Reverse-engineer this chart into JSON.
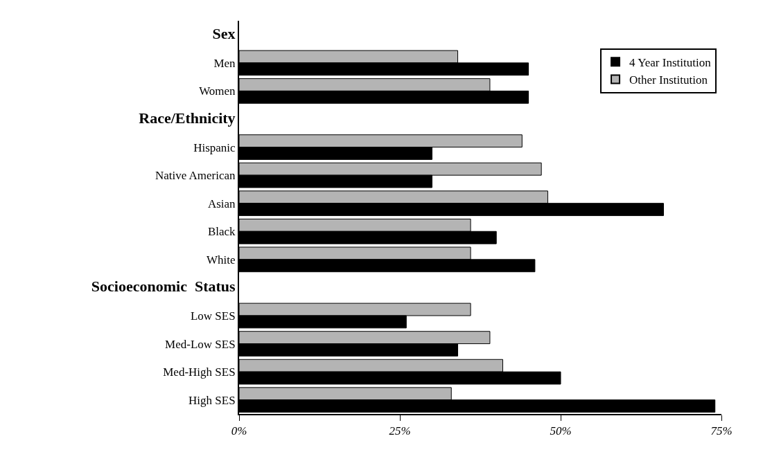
{
  "chart_data": {
    "type": "bar",
    "orientation": "horizontal",
    "categories": [
      "Sex",
      "Men",
      "Women",
      "Race/Ethnicity",
      "Hispanic",
      "Native American",
      "Asian",
      "Black",
      "White",
      "Socioeconomic  Status",
      "Low SES",
      "Med-Low SES",
      "Med-High SES",
      "High SES"
    ],
    "series": [
      {
        "name": "4 Year Institution",
        "color": "#000000",
        "values": [
          null,
          45,
          45,
          null,
          30,
          30,
          66,
          40,
          46,
          null,
          26,
          34,
          50,
          74
        ]
      },
      {
        "name": "Other Institution",
        "color": "#b4b4b4",
        "values": [
          null,
          34,
          39,
          null,
          44,
          47,
          48,
          36,
          36,
          null,
          36,
          39,
          41,
          33
        ]
      }
    ],
    "xlim": [
      0,
      75
    ],
    "xticks": [
      {
        "value": 0,
        "label": "0%"
      },
      {
        "value": 25,
        "label": "25%"
      },
      {
        "value": 50,
        "label": "50%"
      },
      {
        "value": 75,
        "label": "75%"
      }
    ],
    "grid": false,
    "legend": "top right"
  }
}
